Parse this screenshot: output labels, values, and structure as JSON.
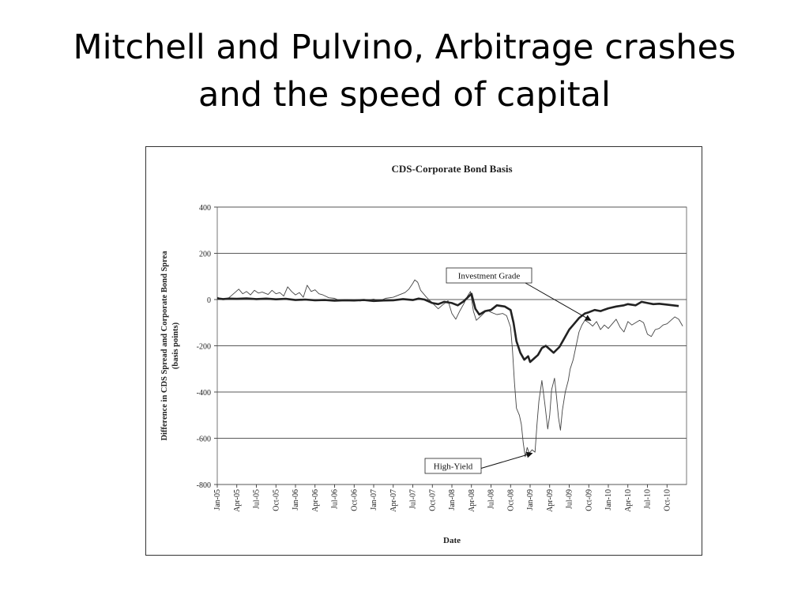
{
  "slide": {
    "title_line1": "Mitchell and Pulvino, Arbitrage crashes",
    "title_line2": "and the speed of capital"
  },
  "chart_data": {
    "type": "line",
    "title": "CDS-Corporate Bond Basis",
    "xlabel": "Date",
    "ylabel_line1": "Difference in CDS Spread and Corporate Bond Sprea",
    "ylabel_line2": "(basis points)",
    "ylim": [
      -800,
      400
    ],
    "yticks": [
      400,
      200,
      0,
      -200,
      -400,
      -600,
      -800
    ],
    "grid": "horizontal",
    "x_categories": [
      "Jan-05",
      "Apr-05",
      "Jul-05",
      "Oct-05",
      "Jan-06",
      "Apr-06",
      "Jul-06",
      "Oct-06",
      "Jan-07",
      "Apr-07",
      "Jul-07",
      "Oct-07",
      "Jan-08",
      "Apr-08",
      "Jul-08",
      "Oct-08",
      "Jan-09",
      "Apr-09",
      "Jul-09",
      "Oct-09",
      "Jan-10",
      "Apr-10",
      "Jul-10",
      "Oct-10"
    ],
    "series": [
      {
        "name": "Investment Grade",
        "style": "thick",
        "color": "#222222",
        "points": [
          [
            0,
            5
          ],
          [
            0.3,
            2
          ],
          [
            0.6,
            4
          ],
          [
            1,
            3
          ],
          [
            1.5,
            5
          ],
          [
            2,
            2
          ],
          [
            2.5,
            4
          ],
          [
            3,
            1
          ],
          [
            3.5,
            3
          ],
          [
            4,
            -2
          ],
          [
            4.5,
            0
          ],
          [
            5,
            -3
          ],
          [
            5.5,
            -2
          ],
          [
            6,
            -5
          ],
          [
            6.5,
            -3
          ],
          [
            7,
            -4
          ],
          [
            7.5,
            -2
          ],
          [
            8,
            -6
          ],
          [
            8.5,
            -4
          ],
          [
            9,
            -3
          ],
          [
            9.5,
            2
          ],
          [
            10,
            -2
          ],
          [
            10.3,
            4
          ],
          [
            10.6,
            0
          ],
          [
            11,
            -15
          ],
          [
            11.3,
            -20
          ],
          [
            11.6,
            -10
          ],
          [
            12,
            -15
          ],
          [
            12.3,
            -25
          ],
          [
            12.6,
            -8
          ],
          [
            13,
            25
          ],
          [
            13.2,
            -40
          ],
          [
            13.4,
            -65
          ],
          [
            13.7,
            -50
          ],
          [
            14,
            -45
          ],
          [
            14.3,
            -25
          ],
          [
            14.7,
            -30
          ],
          [
            15,
            -45
          ],
          [
            15.15,
            -100
          ],
          [
            15.3,
            -180
          ],
          [
            15.5,
            -230
          ],
          [
            15.7,
            -260
          ],
          [
            15.9,
            -245
          ],
          [
            16,
            -270
          ],
          [
            16.2,
            -255
          ],
          [
            16.4,
            -240
          ],
          [
            16.6,
            -210
          ],
          [
            16.8,
            -200
          ],
          [
            17,
            -215
          ],
          [
            17.2,
            -230
          ],
          [
            17.5,
            -205
          ],
          [
            17.7,
            -175
          ],
          [
            18,
            -130
          ],
          [
            18.2,
            -110
          ],
          [
            18.5,
            -80
          ],
          [
            18.8,
            -60
          ],
          [
            19,
            -55
          ],
          [
            19.3,
            -45
          ],
          [
            19.6,
            -50
          ],
          [
            20,
            -38
          ],
          [
            20.4,
            -30
          ],
          [
            20.8,
            -25
          ],
          [
            21,
            -20
          ],
          [
            21.4,
            -25
          ],
          [
            21.7,
            -10
          ],
          [
            22,
            -15
          ],
          [
            22.3,
            -20
          ],
          [
            22.6,
            -18
          ],
          [
            23,
            -22
          ],
          [
            23.3,
            -25
          ],
          [
            23.6,
            -28
          ]
        ]
      },
      {
        "name": "High-Yield",
        "style": "thin",
        "color": "#444444",
        "points": [
          [
            0,
            10
          ],
          [
            0.3,
            0
          ],
          [
            0.6,
            8
          ],
          [
            0.9,
            30
          ],
          [
            1.1,
            45
          ],
          [
            1.3,
            25
          ],
          [
            1.5,
            35
          ],
          [
            1.7,
            20
          ],
          [
            1.9,
            40
          ],
          [
            2.1,
            28
          ],
          [
            2.3,
            32
          ],
          [
            2.6,
            22
          ],
          [
            2.8,
            40
          ],
          [
            3,
            25
          ],
          [
            3.2,
            30
          ],
          [
            3.4,
            15
          ],
          [
            3.6,
            55
          ],
          [
            3.8,
            35
          ],
          [
            4,
            20
          ],
          [
            4.2,
            30
          ],
          [
            4.4,
            10
          ],
          [
            4.6,
            62
          ],
          [
            4.8,
            35
          ],
          [
            5,
            42
          ],
          [
            5.2,
            25
          ],
          [
            5.4,
            20
          ],
          [
            5.7,
            8
          ],
          [
            6,
            5
          ],
          [
            6.3,
            -5
          ],
          [
            6.6,
            0
          ],
          [
            7,
            -2
          ],
          [
            7.3,
            -6
          ],
          [
            7.6,
            -3
          ],
          [
            8,
            2
          ],
          [
            8.3,
            -5
          ],
          [
            8.6,
            5
          ],
          [
            9,
            10
          ],
          [
            9.3,
            20
          ],
          [
            9.6,
            30
          ],
          [
            9.8,
            45
          ],
          [
            10,
            70
          ],
          [
            10.1,
            85
          ],
          [
            10.25,
            75
          ],
          [
            10.4,
            40
          ],
          [
            10.7,
            10
          ],
          [
            11,
            -15
          ],
          [
            11.3,
            -40
          ],
          [
            11.5,
            -25
          ],
          [
            11.8,
            -5
          ],
          [
            12,
            -60
          ],
          [
            12.2,
            -85
          ],
          [
            12.4,
            -50
          ],
          [
            12.6,
            -20
          ],
          [
            12.8,
            15
          ],
          [
            12.95,
            35
          ],
          [
            13.1,
            -50
          ],
          [
            13.25,
            -90
          ],
          [
            13.5,
            -70
          ],
          [
            13.8,
            -45
          ],
          [
            14,
            -55
          ],
          [
            14.3,
            -65
          ],
          [
            14.6,
            -60
          ],
          [
            14.8,
            -70
          ],
          [
            15,
            -120
          ],
          [
            15.1,
            -220
          ],
          [
            15.2,
            -360
          ],
          [
            15.3,
            -470
          ],
          [
            15.45,
            -500
          ],
          [
            15.55,
            -540
          ],
          [
            15.65,
            -620
          ],
          [
            15.75,
            -680
          ],
          [
            15.85,
            -640
          ],
          [
            15.95,
            -665
          ],
          [
            16.1,
            -650
          ],
          [
            16.25,
            -660
          ],
          [
            16.35,
            -540
          ],
          [
            16.45,
            -440
          ],
          [
            16.6,
            -350
          ],
          [
            16.75,
            -450
          ],
          [
            16.9,
            -560
          ],
          [
            17,
            -500
          ],
          [
            17.1,
            -390
          ],
          [
            17.25,
            -340
          ],
          [
            17.35,
            -420
          ],
          [
            17.45,
            -510
          ],
          [
            17.55,
            -565
          ],
          [
            17.65,
            -480
          ],
          [
            17.8,
            -400
          ],
          [
            17.95,
            -350
          ],
          [
            18.05,
            -300
          ],
          [
            18.2,
            -260
          ],
          [
            18.35,
            -200
          ],
          [
            18.5,
            -140
          ],
          [
            18.65,
            -110
          ],
          [
            18.8,
            -90
          ],
          [
            19,
            -100
          ],
          [
            19.2,
            -115
          ],
          [
            19.4,
            -95
          ],
          [
            19.6,
            -130
          ],
          [
            19.8,
            -110
          ],
          [
            20,
            -125
          ],
          [
            20.2,
            -105
          ],
          [
            20.4,
            -85
          ],
          [
            20.6,
            -120
          ],
          [
            20.8,
            -140
          ],
          [
            21,
            -95
          ],
          [
            21.2,
            -110
          ],
          [
            21.4,
            -100
          ],
          [
            21.6,
            -90
          ],
          [
            21.8,
            -100
          ],
          [
            22,
            -150
          ],
          [
            22.2,
            -160
          ],
          [
            22.4,
            -130
          ],
          [
            22.6,
            -125
          ],
          [
            22.8,
            -110
          ],
          [
            23,
            -105
          ],
          [
            23.2,
            -90
          ],
          [
            23.4,
            -75
          ],
          [
            23.6,
            -85
          ],
          [
            23.8,
            -115
          ]
        ]
      }
    ],
    "annotations": [
      {
        "text": "Investment Grade",
        "arrow_to": [
          19.1,
          -90
        ]
      },
      {
        "text": "High-Yield",
        "arrow_to": [
          16.1,
          -665
        ]
      }
    ]
  }
}
